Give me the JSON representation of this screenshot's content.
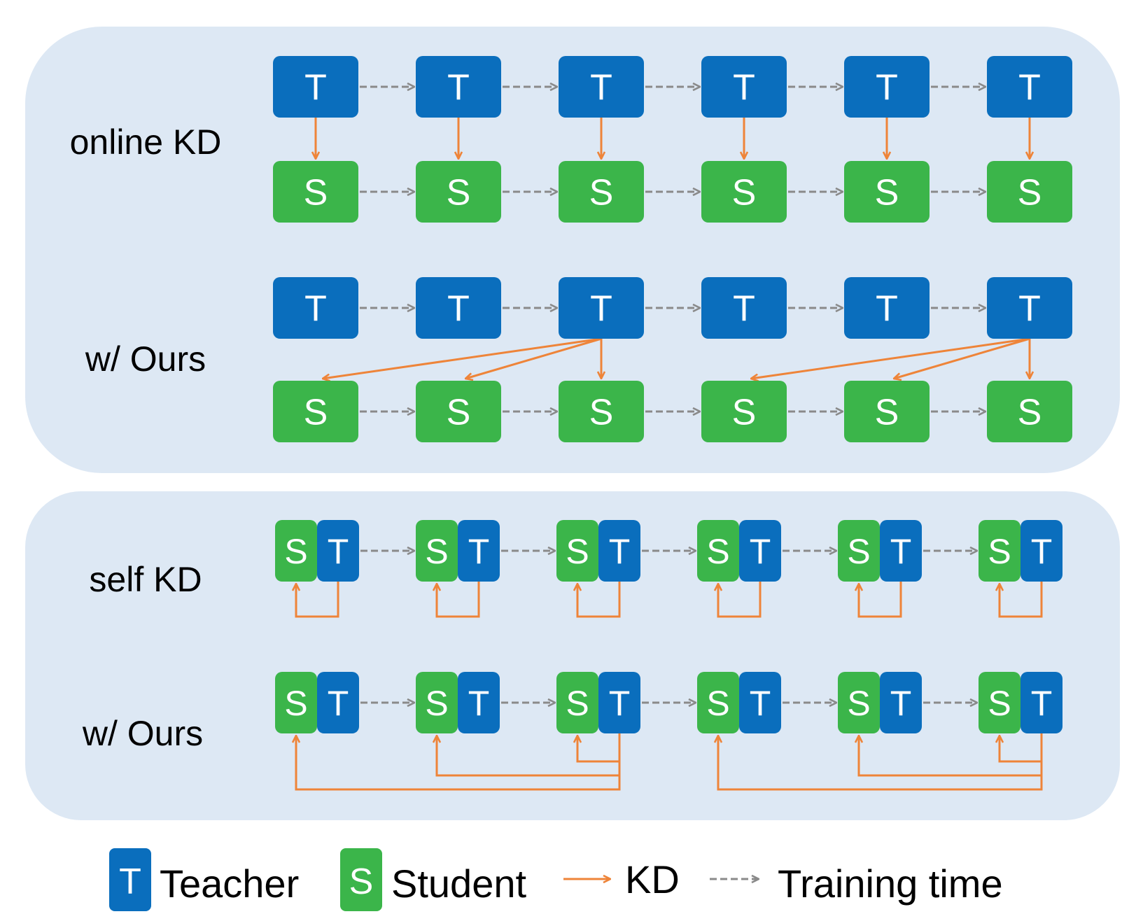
{
  "colors": {
    "panel_bg": "#dde8f4",
    "teacher": "#0a6ebd",
    "student": "#3bb54a",
    "kd_arrow": "#ee8439",
    "time_arrow": "#8a8a8a",
    "glyph": "#ffffff"
  },
  "glyphs": {
    "teacher": "T",
    "student": "S"
  },
  "rows": {
    "online_kd": "online KD",
    "online_ours": "w/ Ours",
    "self_kd": "self KD",
    "self_ours": "w/ Ours"
  },
  "steps": 6,
  "online_ours_kd_groups": [
    {
      "teacher_step": 3,
      "student_steps": [
        1,
        2,
        3
      ]
    },
    {
      "teacher_step": 6,
      "student_steps": [
        4,
        5,
        6
      ]
    }
  ],
  "self_ours_kd_groups": [
    {
      "teacher_step": 3,
      "student_steps": [
        1,
        2,
        3
      ]
    },
    {
      "teacher_step": 6,
      "student_steps": [
        4,
        5,
        6
      ]
    }
  ],
  "legend": {
    "teacher_label": "Teacher",
    "student_label": "Student",
    "kd_label": "KD",
    "time_label": "Training time"
  }
}
